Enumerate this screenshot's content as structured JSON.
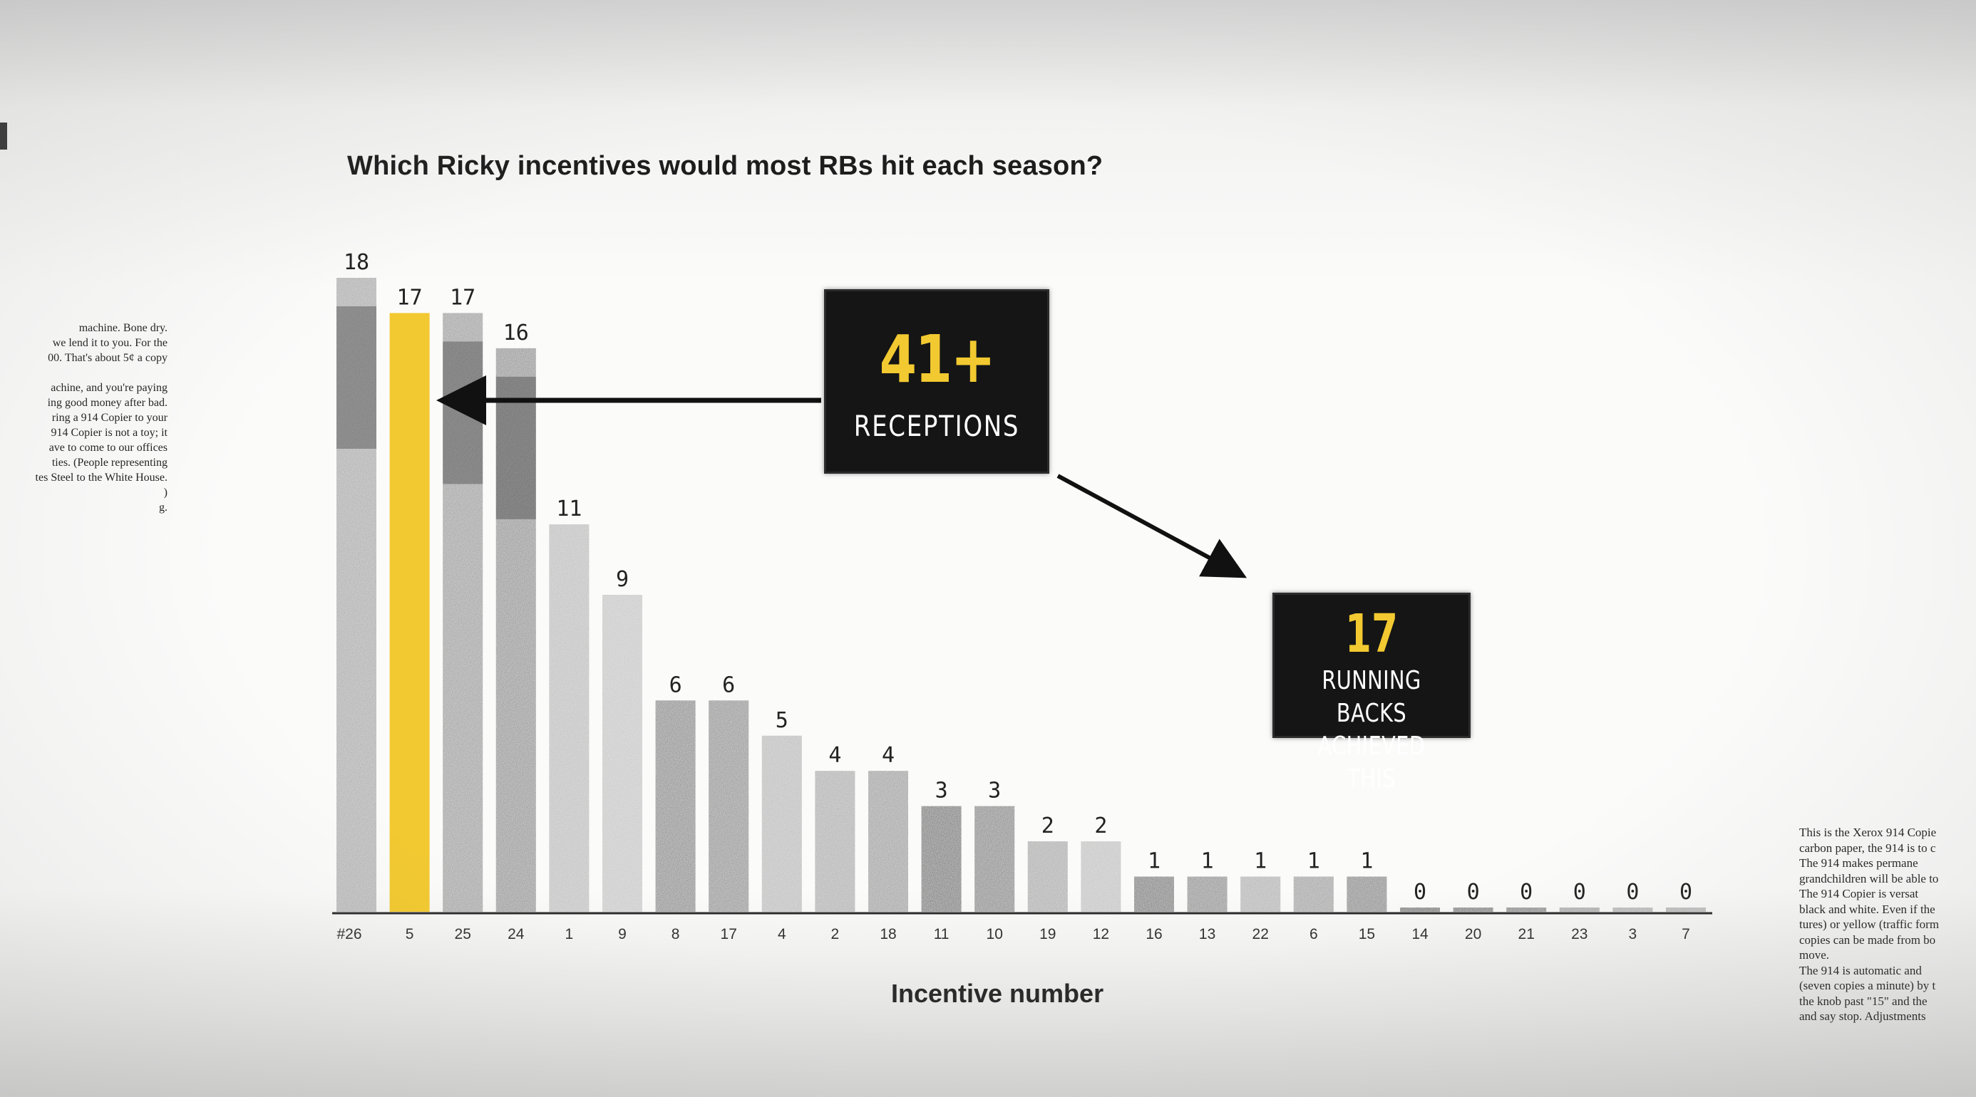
{
  "chart_data": {
    "type": "bar",
    "title": "Which Ricky incentives would most RBs hit each season?",
    "xlabel": "Incentive number",
    "ylabel": "",
    "ylim": [
      0,
      18
    ],
    "grid": false,
    "legend": "none",
    "highlight_color": "#f2c930",
    "categories": [
      "#26",
      "5",
      "25",
      "24",
      "1",
      "9",
      "8",
      "17",
      "4",
      "2",
      "18",
      "11",
      "10",
      "19",
      "12",
      "16",
      "13",
      "22",
      "6",
      "15",
      "14",
      "20",
      "21",
      "23",
      "3",
      "7"
    ],
    "values": [
      18,
      17,
      17,
      16,
      11,
      9,
      6,
      6,
      5,
      4,
      4,
      3,
      3,
      2,
      2,
      1,
      1,
      1,
      1,
      1,
      0,
      0,
      0,
      0,
      0,
      0
    ],
    "highlighted_index": 1
  },
  "callouts": {
    "receptions_value": "41+",
    "receptions_label": "RECEPTIONS",
    "rb_value": "17",
    "rb_line1": "RUNNING BACKS",
    "rb_line2": "ACHIEVED THIS"
  },
  "left_clipping": [
    "machine. Bone dry.",
    "we lend it to you. For the",
    "00. That's about 5¢ a copy",
    "",
    "achine, and you're paying",
    "ing good money after bad.",
    "ring a 914 Copier to your",
    "914 Copier is not a toy; it",
    "ave to come to our offices",
    "ties. (People representing",
    "tes Steel to the White House.",
    ")",
    "g."
  ],
  "right_clipping": [
    "This is the Xerox 914 Copie",
    "carbon paper, the 914 is to c",
    "The 914 makes permane",
    "grandchildren will be able to",
    "The 914 Copier is versat",
    "black and white. Even if the",
    "tures) or yellow (traffic form",
    "copies can be made from bo",
    "move.",
    "The 914 is automatic and",
    "(seven copies a minute) by t",
    "the knob past \"15\" and the",
    "and say stop. Adjustments"
  ]
}
